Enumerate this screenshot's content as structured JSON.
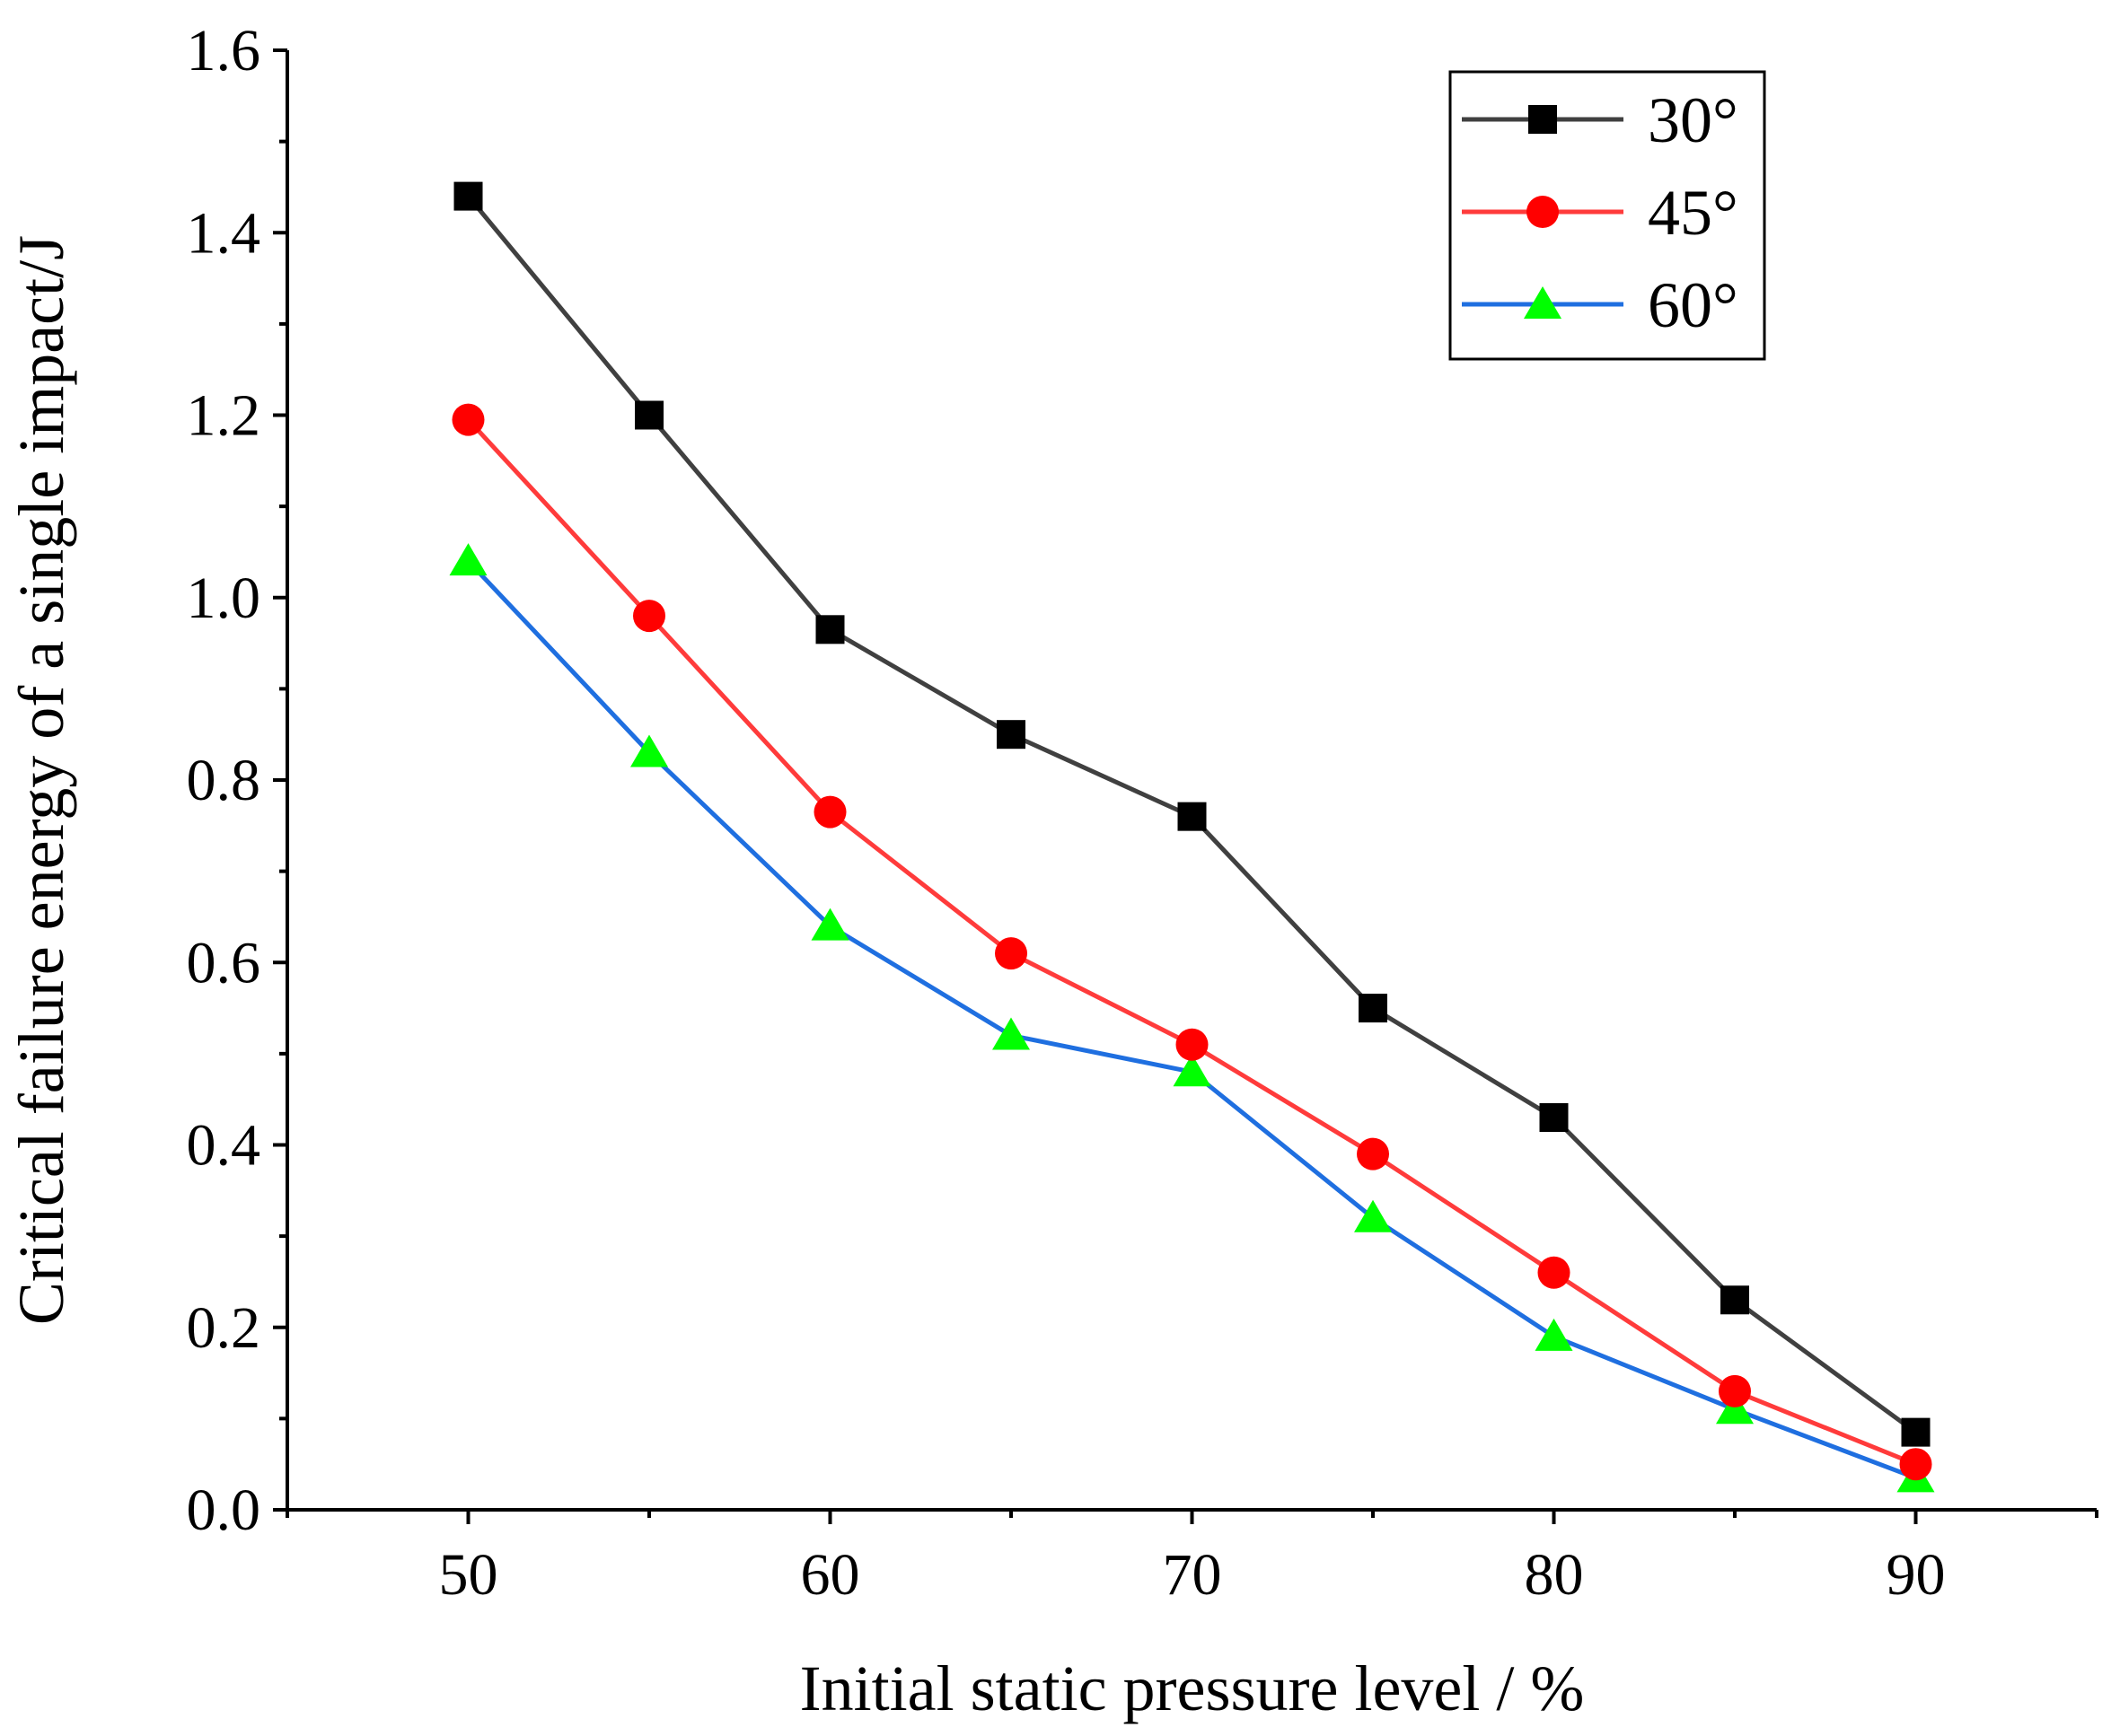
{
  "chart_data": {
    "type": "line",
    "title": "",
    "xlabel": "Initial static pressure level / %",
    "ylabel": "Critical failure energy of a single impact/J",
    "xlim": [
      45,
      95
    ],
    "ylim": [
      0,
      1.6
    ],
    "x_ticks": [
      50,
      60,
      70,
      80,
      90
    ],
    "x_tick_labels": [
      "50",
      "60",
      "70",
      "80",
      "90"
    ],
    "y_ticks": [
      0,
      0.2,
      0.4,
      0.6,
      0.8,
      1.0,
      1.2,
      1.4,
      1.6
    ],
    "y_tick_labels": [
      "0.0",
      "0.2",
      "0.4",
      "0.6",
      "0.8",
      "1.0",
      "1.2",
      "1.4",
      "1.6"
    ],
    "grid": false,
    "legend_position": "top-right",
    "x": [
      50,
      55,
      60,
      65,
      70,
      75,
      80,
      85,
      90
    ],
    "series": [
      {
        "name": "30°",
        "marker": "square",
        "line_color": "#404040",
        "marker_color": "#000000",
        "values": [
          1.44,
          1.2,
          0.965,
          0.85,
          0.76,
          0.55,
          0.43,
          0.23,
          0.085
        ]
      },
      {
        "name": "45°",
        "marker": "circle",
        "line_color": "#ff3b3b",
        "marker_color": "#ff0000",
        "values": [
          1.195,
          0.98,
          0.765,
          0.61,
          0.51,
          0.39,
          0.26,
          0.13,
          0.05
        ]
      },
      {
        "name": "60°",
        "marker": "triangle",
        "line_color": "#1f6fe0",
        "marker_color": "#00ff00",
        "values": [
          1.04,
          0.83,
          0.64,
          0.52,
          0.48,
          0.32,
          0.19,
          0.11,
          0.035
        ]
      }
    ]
  }
}
